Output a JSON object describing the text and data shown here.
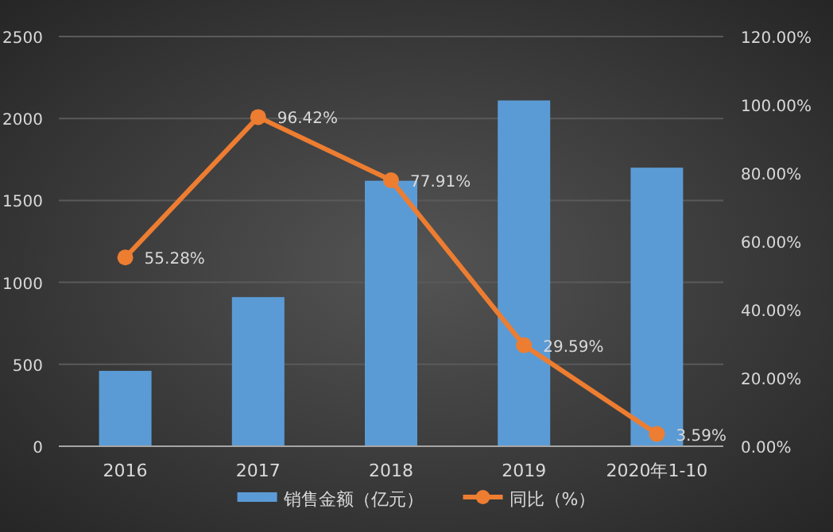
{
  "chart_data": {
    "type": "bar",
    "categories": [
      "2016",
      "2017",
      "2018",
      "2019",
      "2020年1-10"
    ],
    "series": [
      {
        "name": "销售金额（亿元）",
        "type": "bar",
        "color": "#5b9bd5",
        "values": [
          460,
          910,
          1620,
          2110,
          1700
        ]
      },
      {
        "name": "同比（%）",
        "type": "line",
        "axis": "y2",
        "color": "#ed7d31",
        "marker": "circle",
        "values": [
          55.28,
          96.42,
          77.91,
          29.59,
          3.59
        ],
        "value_labels": [
          "55.28%",
          "96.42%",
          "77.91%",
          "29.59%",
          "3.59%"
        ]
      }
    ],
    "ylim": [
      0,
      2500
    ],
    "yticks": [
      0,
      500,
      1000,
      1500,
      2000,
      2500
    ],
    "y2lim": [
      0,
      120
    ],
    "y2ticks": [
      {
        "value": 0,
        "label": "0.00%"
      },
      {
        "value": 20,
        "label": "20.00%"
      },
      {
        "value": 40,
        "label": "40.00%"
      },
      {
        "value": 60,
        "label": "60.00%"
      },
      {
        "value": 80,
        "label": "80.00%"
      },
      {
        "value": 100,
        "label": "100.00%"
      },
      {
        "value": 120,
        "label": "120.00%"
      }
    ],
    "grid": "y",
    "legend": "bottom"
  }
}
